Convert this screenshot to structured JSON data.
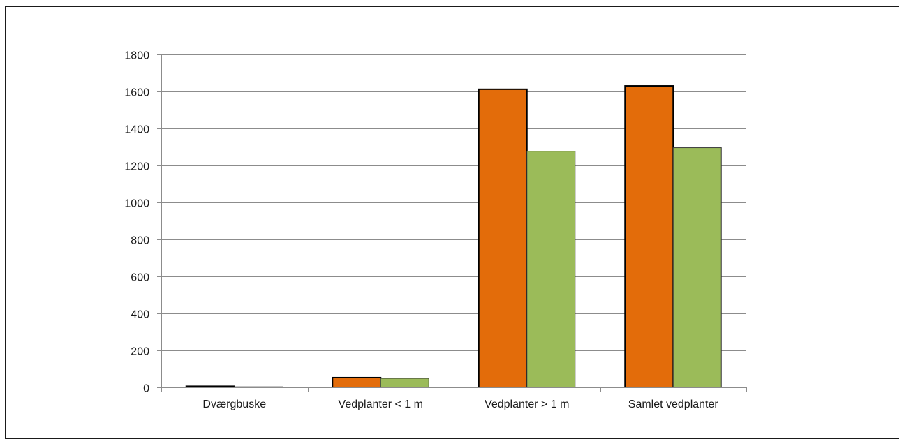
{
  "chart_data": {
    "type": "bar",
    "title": "",
    "xlabel": "",
    "ylabel": "",
    "categories": [
      "Dværgbuske",
      "Vedplanter < 1 m",
      "Vedplanter > 1 m",
      "Samlet vedplanter"
    ],
    "series": [
      {
        "values": [
          6,
          53,
          1612,
          1630
        ],
        "color": "#e36c0a",
        "outlined": true
      },
      {
        "values": [
          3,
          49,
          1277,
          1296
        ],
        "color": "#9bbb59",
        "outlined": false
      }
    ],
    "ylim": [
      0,
      1800
    ],
    "yticks": [
      0,
      200,
      400,
      600,
      800,
      1000,
      1200,
      1400,
      1600,
      1800
    ],
    "grid": true,
    "legend": "none"
  }
}
